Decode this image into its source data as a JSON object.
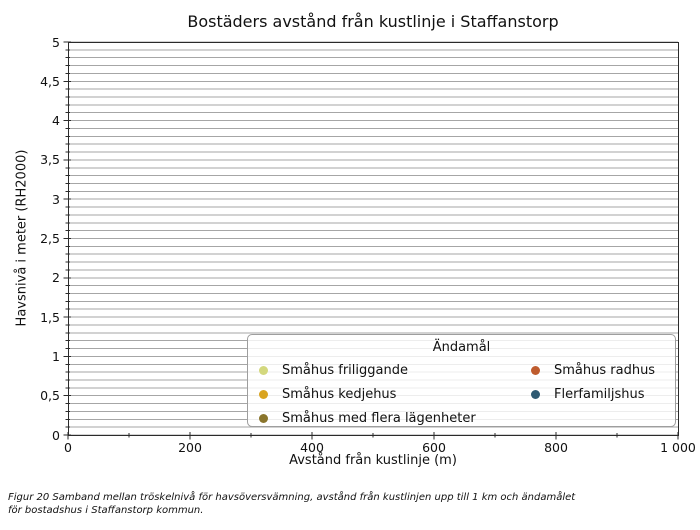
{
  "chart_data": {
    "type": "scatter",
    "title": "Bostäders avstånd från kustlinje i Staffanstorp",
    "xlabel": "Avstånd från kustlinje (m)",
    "ylabel": "Havsnivå i meter (RH2000)",
    "xlim": [
      0,
      1000
    ],
    "ylim": [
      0,
      5
    ],
    "x_major_ticks": [
      {
        "value": 0,
        "label": "0"
      },
      {
        "value": 200,
        "label": "200"
      },
      {
        "value": 400,
        "label": "400"
      },
      {
        "value": 600,
        "label": "600"
      },
      {
        "value": 800,
        "label": "800"
      },
      {
        "value": 1000,
        "label": "1 000"
      }
    ],
    "x_minor_ticks": [
      100,
      300,
      500,
      700,
      900
    ],
    "y_major_ticks": [
      {
        "value": 0,
        "label": "0"
      },
      {
        "value": 0.5,
        "label": "0,5"
      },
      {
        "value": 1,
        "label": "1"
      },
      {
        "value": 1.5,
        "label": "1,5"
      },
      {
        "value": 2,
        "label": "2"
      },
      {
        "value": 2.5,
        "label": "2,5"
      },
      {
        "value": 3,
        "label": "3"
      },
      {
        "value": 3.5,
        "label": "3,5"
      },
      {
        "value": 4,
        "label": "4"
      },
      {
        "value": 4.5,
        "label": "4,5"
      },
      {
        "value": 5,
        "label": "5"
      }
    ],
    "y_minor_step": 0.1,
    "grid": {
      "horizontal_step": 0.1,
      "vertical": false,
      "color": "#a6a6a6"
    },
    "legend": {
      "title": "Ändamål",
      "ncol": 2,
      "rows_per_col": [
        3,
        2
      ]
    },
    "series": [
      {
        "name": "Småhus friliggande",
        "color": "#d3d87e",
        "points": []
      },
      {
        "name": "Småhus kedjehus",
        "color": "#d9a420",
        "points": []
      },
      {
        "name": "Småhus med flera lägenheter",
        "color": "#8a752c",
        "points": []
      },
      {
        "name": "Småhus radhus",
        "color": "#bf5c2e",
        "points": []
      },
      {
        "name": "Flerfamiljshus",
        "color": "#2f5a72",
        "points": []
      }
    ],
    "note": "No scatter points are visible within the plotted axis range."
  },
  "caption": {
    "line1": "Figur 20 Samband mellan tröskelnivå för havsöversvämning, avstånd från kustlinjen upp till 1 km och ändamålet",
    "line2": "för bostadshus i Staffanstorp kommun."
  },
  "colors": {
    "background": "#ffffff",
    "gridline": "#a6a6a6",
    "spine": "#2b2b2b",
    "legend_border": "#9e9e9e",
    "text": "#111111"
  }
}
